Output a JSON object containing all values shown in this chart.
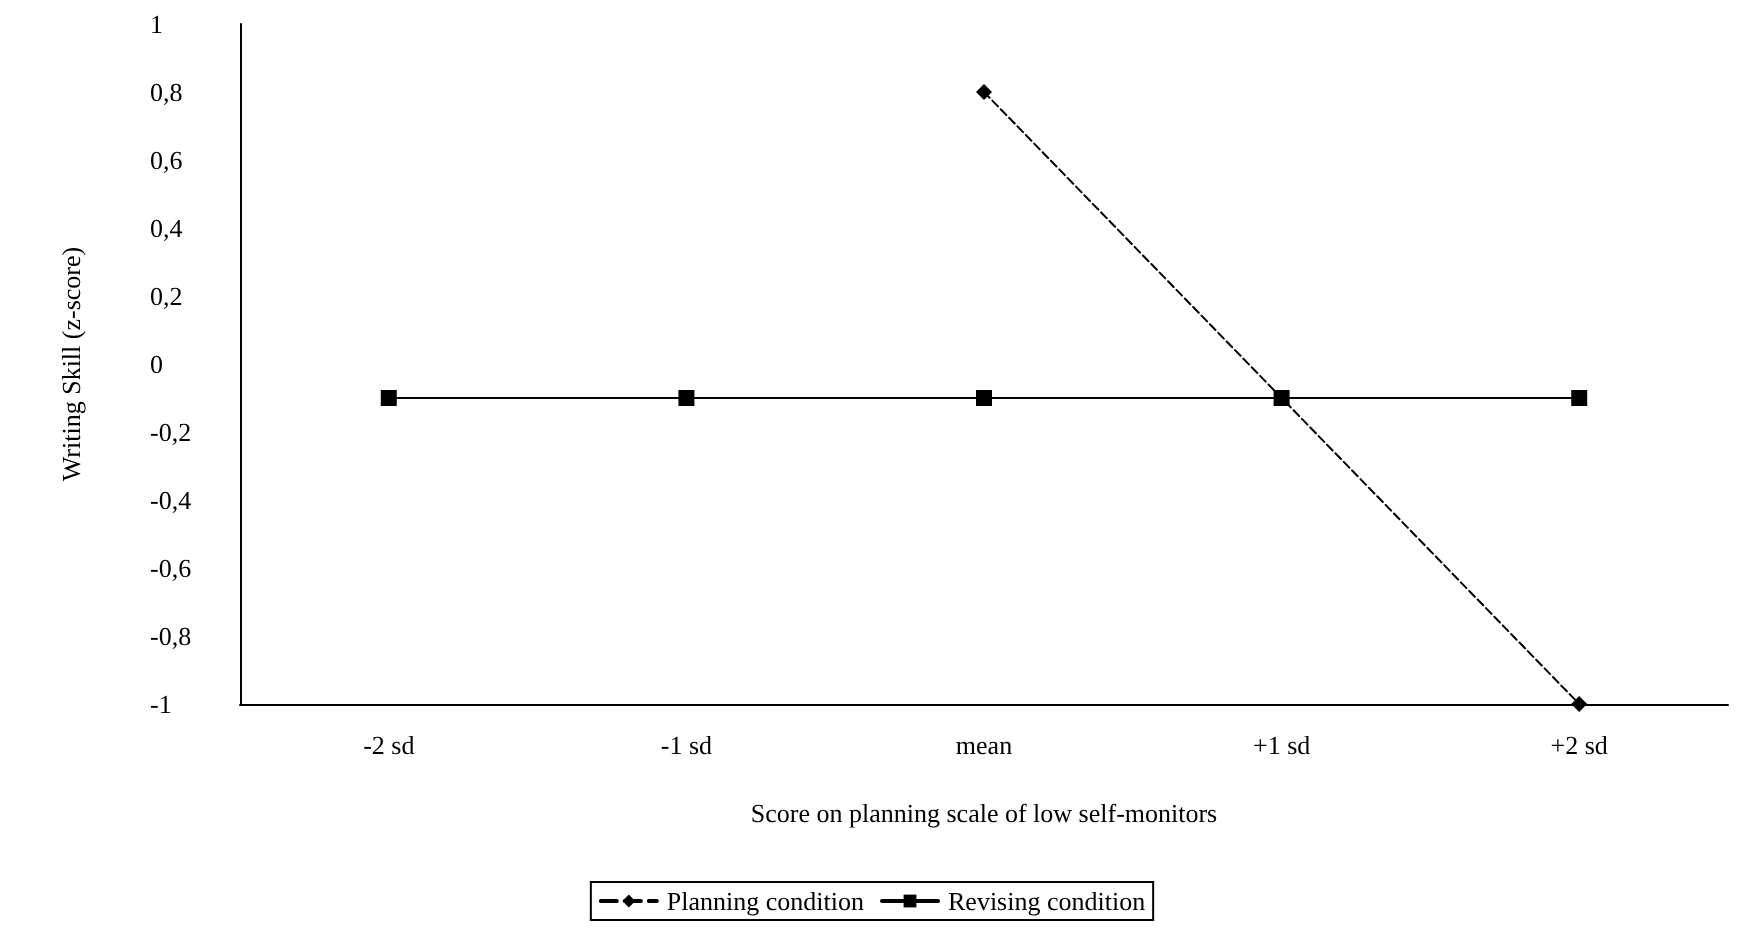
{
  "chart_data": {
    "type": "line",
    "xlabel": "Score on planning scale of low self-monitors",
    "ylabel": "Writing Skill (z-score)",
    "categories": [
      "-2 sd",
      "-1 sd",
      "mean",
      "+1 sd",
      "+2 sd"
    ],
    "series": [
      {
        "name": "Planning condition",
        "color": "#000000",
        "values": [
          null,
          null,
          0.8,
          -0.1,
          -1
        ],
        "marker": "diamond",
        "line_style": "dashed"
      },
      {
        "name": "Revising condition",
        "color": "#000000",
        "values": [
          -0.1,
          -0.1,
          -0.1,
          -0.1,
          -0.1
        ],
        "marker": "square",
        "line_style": "solid"
      }
    ],
    "ylim": [
      -1,
      1
    ],
    "yticks": [
      {
        "value": -1,
        "label": "-1"
      },
      {
        "value": -0.8,
        "label": "-0,8"
      },
      {
        "value": -0.6,
        "label": "-0,6"
      },
      {
        "value": -0.4,
        "label": "-0,4"
      },
      {
        "value": -0.2,
        "label": "-0,2"
      },
      {
        "value": 0,
        "label": "0"
      },
      {
        "value": 0.2,
        "label": "0,2"
      },
      {
        "value": 0.4,
        "label": "0,4"
      },
      {
        "value": 0.6,
        "label": "0,6"
      },
      {
        "value": 0.8,
        "label": "0,8"
      },
      {
        "value": 1,
        "label": "1"
      }
    ],
    "grid": false,
    "legend": "bottom"
  }
}
